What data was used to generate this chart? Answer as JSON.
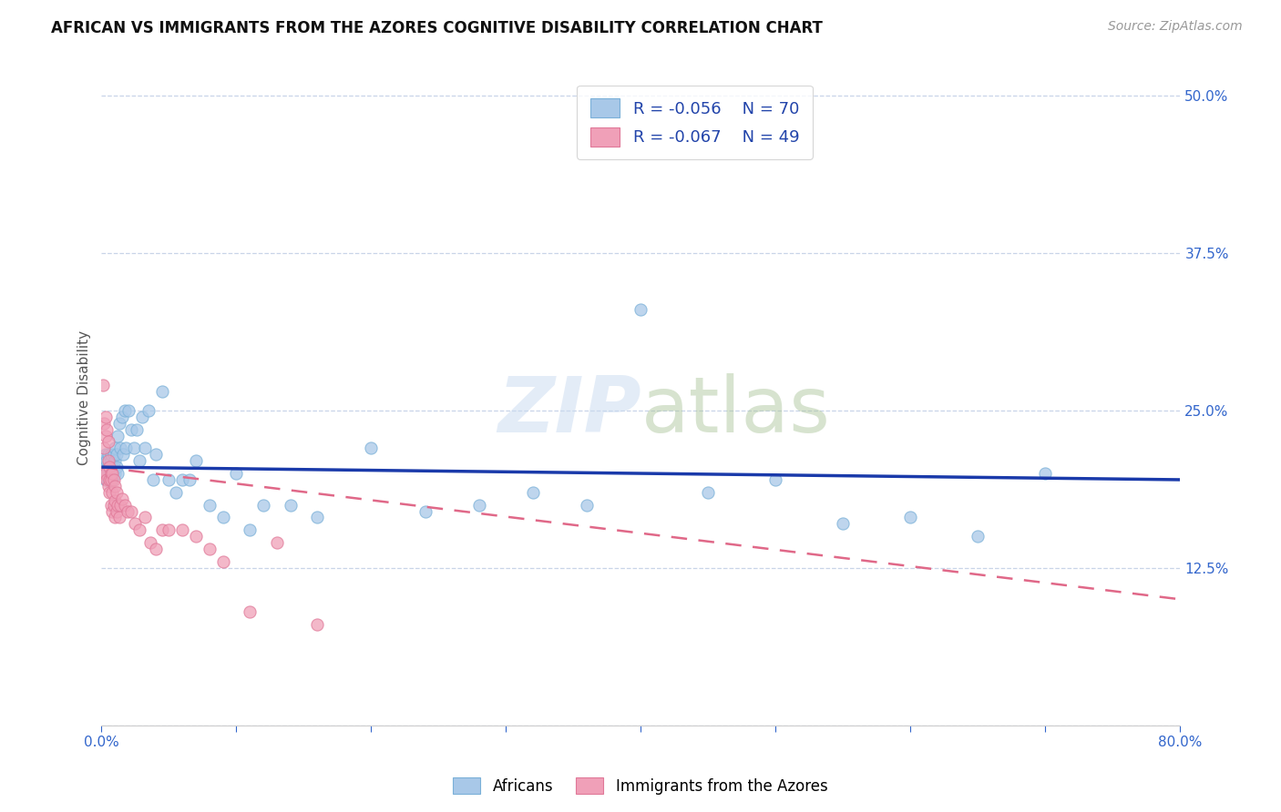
{
  "title": "AFRICAN VS IMMIGRANTS FROM THE AZORES COGNITIVE DISABILITY CORRELATION CHART",
  "source": "Source: ZipAtlas.com",
  "ylabel": "Cognitive Disability",
  "xlim": [
    0.0,
    0.8
  ],
  "ylim": [
    0.0,
    0.52
  ],
  "yticks": [
    0.0,
    0.125,
    0.25,
    0.375,
    0.5
  ],
  "background_color": "#ffffff",
  "grid_color": "#c8d4e8",
  "watermark": "ZIPatlas",
  "africans": {
    "color": "#a8c8e8",
    "edge_color": "#7ab0d8",
    "R": -0.056,
    "N": 70,
    "label": "Africans",
    "trend_color": "#1a3aaa",
    "x": [
      0.001,
      0.002,
      0.002,
      0.003,
      0.003,
      0.003,
      0.004,
      0.004,
      0.005,
      0.005,
      0.005,
      0.006,
      0.006,
      0.006,
      0.007,
      0.007,
      0.007,
      0.008,
      0.008,
      0.008,
      0.009,
      0.009,
      0.01,
      0.01,
      0.01,
      0.011,
      0.011,
      0.012,
      0.012,
      0.013,
      0.014,
      0.015,
      0.016,
      0.017,
      0.018,
      0.02,
      0.022,
      0.024,
      0.026,
      0.028,
      0.03,
      0.032,
      0.035,
      0.038,
      0.04,
      0.045,
      0.05,
      0.055,
      0.06,
      0.065,
      0.07,
      0.08,
      0.09,
      0.1,
      0.11,
      0.12,
      0.14,
      0.16,
      0.2,
      0.24,
      0.28,
      0.32,
      0.36,
      0.4,
      0.45,
      0.5,
      0.55,
      0.6,
      0.65,
      0.7
    ],
    "y": [
      0.205,
      0.2,
      0.21,
      0.215,
      0.205,
      0.195,
      0.2,
      0.21,
      0.195,
      0.205,
      0.215,
      0.2,
      0.205,
      0.195,
      0.21,
      0.2,
      0.215,
      0.205,
      0.195,
      0.2,
      0.215,
      0.205,
      0.2,
      0.21,
      0.22,
      0.205,
      0.215,
      0.23,
      0.2,
      0.24,
      0.22,
      0.245,
      0.215,
      0.25,
      0.22,
      0.25,
      0.235,
      0.22,
      0.235,
      0.21,
      0.245,
      0.22,
      0.25,
      0.195,
      0.215,
      0.265,
      0.195,
      0.185,
      0.195,
      0.195,
      0.21,
      0.175,
      0.165,
      0.2,
      0.155,
      0.175,
      0.175,
      0.165,
      0.22,
      0.17,
      0.175,
      0.185,
      0.175,
      0.33,
      0.185,
      0.195,
      0.16,
      0.165,
      0.15,
      0.2
    ],
    "trend_y_start": 0.205,
    "trend_y_end": 0.195
  },
  "azores": {
    "color": "#f0a0b8",
    "edge_color": "#e07898",
    "R": -0.067,
    "N": 49,
    "label": "Immigrants from the Azores",
    "trend_color": "#e06888",
    "x": [
      0.001,
      0.001,
      0.002,
      0.002,
      0.003,
      0.003,
      0.003,
      0.004,
      0.004,
      0.005,
      0.005,
      0.005,
      0.006,
      0.006,
      0.006,
      0.007,
      0.007,
      0.007,
      0.008,
      0.008,
      0.008,
      0.009,
      0.009,
      0.01,
      0.01,
      0.01,
      0.011,
      0.011,
      0.012,
      0.013,
      0.014,
      0.015,
      0.017,
      0.019,
      0.022,
      0.025,
      0.028,
      0.032,
      0.036,
      0.04,
      0.045,
      0.05,
      0.06,
      0.07,
      0.08,
      0.09,
      0.11,
      0.13,
      0.16
    ],
    "y": [
      0.27,
      0.2,
      0.24,
      0.22,
      0.245,
      0.23,
      0.2,
      0.235,
      0.195,
      0.225,
      0.21,
      0.19,
      0.205,
      0.195,
      0.185,
      0.2,
      0.195,
      0.175,
      0.2,
      0.185,
      0.17,
      0.195,
      0.175,
      0.19,
      0.178,
      0.165,
      0.185,
      0.17,
      0.175,
      0.165,
      0.175,
      0.18,
      0.175,
      0.17,
      0.17,
      0.16,
      0.155,
      0.165,
      0.145,
      0.14,
      0.155,
      0.155,
      0.155,
      0.15,
      0.14,
      0.13,
      0.09,
      0.145,
      0.08
    ],
    "trend_y_start": 0.205,
    "trend_y_end": 0.1
  },
  "legend_african_R": "R = -0.056",
  "legend_african_N": "N = 70",
  "legend_azores_R": "R = -0.067",
  "legend_azores_N": "N = 49",
  "title_fontsize": 12,
  "axis_label_fontsize": 11,
  "tick_fontsize": 11,
  "source_fontsize": 10
}
